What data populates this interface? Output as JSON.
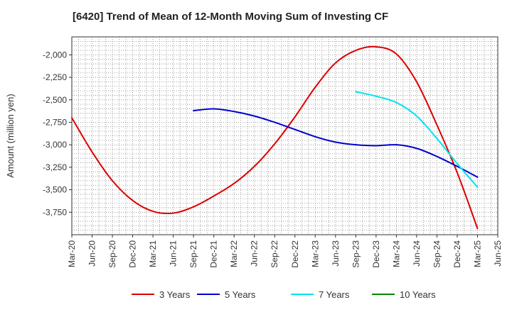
{
  "chart_data": {
    "type": "line",
    "title": "[6420]  Trend of Mean of 12-Month Moving Sum of Investing CF",
    "ylabel": "Amount (million yen)",
    "xlabel": "",
    "ylim": [
      -4000,
      -1800
    ],
    "yticks": [
      -2000,
      -2250,
      -2500,
      -2750,
      -3000,
      -3250,
      -3500,
      -3750
    ],
    "ytick_labels": [
      "-2,000",
      "-2,250",
      "-2,500",
      "-2,750",
      "-3,000",
      "-3,250",
      "-3,500",
      "-3,750"
    ],
    "x_tick_labels": [
      "Mar-20",
      "Jun-20",
      "Sep-20",
      "Dec-20",
      "Mar-21",
      "Jun-21",
      "Sep-21",
      "Dec-21",
      "Mar-22",
      "Jun-22",
      "Sep-22",
      "Dec-22",
      "Mar-23",
      "Jun-23",
      "Sep-23",
      "Dec-23",
      "Mar-24",
      "Jun-24",
      "Sep-24",
      "Dec-24",
      "Mar-25",
      "Jun-25"
    ],
    "grid": true,
    "legend_position": "bottom",
    "series": [
      {
        "name": "3 Years",
        "color": "#dd0000",
        "points": [
          [
            "Mar-20",
            -2700
          ],
          [
            "Jun-20",
            -3080
          ],
          [
            "Sep-20",
            -3400
          ],
          [
            "Dec-20",
            -3620
          ],
          [
            "Mar-21",
            -3740
          ],
          [
            "Jun-21",
            -3760
          ],
          [
            "Sep-21",
            -3690
          ],
          [
            "Dec-21",
            -3570
          ],
          [
            "Mar-22",
            -3430
          ],
          [
            "Jun-22",
            -3240
          ],
          [
            "Sep-22",
            -2990
          ],
          [
            "Dec-22",
            -2690
          ],
          [
            "Mar-23",
            -2360
          ],
          [
            "Jun-23",
            -2090
          ],
          [
            "Sep-23",
            -1950
          ],
          [
            "Dec-23",
            -1910
          ],
          [
            "Mar-24",
            -1990
          ],
          [
            "Jun-24",
            -2300
          ],
          [
            "Sep-24",
            -2780
          ],
          [
            "Dec-24",
            -3310
          ],
          [
            "Mar-25",
            -3930
          ]
        ]
      },
      {
        "name": "5 Years",
        "color": "#0000cc",
        "points": [
          [
            "Sep-21",
            -2620
          ],
          [
            "Dec-21",
            -2600
          ],
          [
            "Mar-22",
            -2630
          ],
          [
            "Jun-22",
            -2680
          ],
          [
            "Sep-22",
            -2750
          ],
          [
            "Dec-22",
            -2830
          ],
          [
            "Mar-23",
            -2910
          ],
          [
            "Jun-23",
            -2970
          ],
          [
            "Sep-23",
            -3000
          ],
          [
            "Dec-23",
            -3010
          ],
          [
            "Mar-24",
            -3000
          ],
          [
            "Jun-24",
            -3040
          ],
          [
            "Sep-24",
            -3130
          ],
          [
            "Dec-24",
            -3240
          ],
          [
            "Mar-25",
            -3360
          ]
        ]
      },
      {
        "name": "7 Years",
        "color": "#00e5ee",
        "points": [
          [
            "Sep-23",
            -2410
          ],
          [
            "Dec-23",
            -2460
          ],
          [
            "Mar-24",
            -2530
          ],
          [
            "Jun-24",
            -2680
          ],
          [
            "Sep-24",
            -2930
          ],
          [
            "Dec-24",
            -3210
          ],
          [
            "Mar-25",
            -3470
          ]
        ]
      },
      {
        "name": "10 Years",
        "color": "#008800",
        "points": []
      }
    ]
  }
}
